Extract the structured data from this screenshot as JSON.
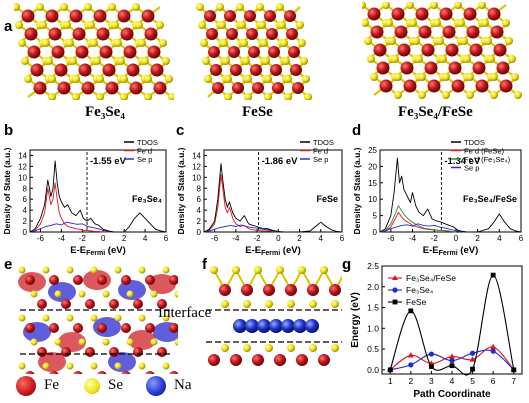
{
  "figure": {
    "panel_labels": [
      "a",
      "b",
      "c",
      "d",
      "e",
      "f",
      "g"
    ],
    "crystal_titles": {
      "fe3se4": "Fe₃Se₄",
      "fese": "FeSe",
      "composite": "Fe₃Se₄/FeSe"
    },
    "interface_label": "Interface",
    "atom_legend": [
      {
        "name": "Fe",
        "color": "#c0141c"
      },
      {
        "name": "Se",
        "color": "#f2e312"
      },
      {
        "name": "Na",
        "color": "#2033c8"
      }
    ],
    "dos_ylabel": "Density of State (a.u.)",
    "dos_xlabel_main": "E-E",
    "dos_xlabel_sub": "Fermi",
    "dos_xlabel_unit": " (eV)",
    "series_colors": {
      "tdos": "#000000",
      "fe_d": "#e0141c",
      "se_p": "#2a2ad8",
      "fe_d2": "#2e8b2e"
    }
  },
  "chart_data": [
    {
      "type": "line",
      "panel": "b",
      "ylabel": "Density of State (a.u.)",
      "xlabel": "E-EFermi (eV)",
      "xlim": [
        -7,
        6
      ],
      "ylim": [
        0,
        15
      ],
      "xticks": [
        -6,
        -4,
        -2,
        0,
        2,
        4,
        6
      ],
      "yticks": [
        0,
        2,
        4,
        6,
        8,
        10,
        12,
        14
      ],
      "fermi_annotation": "-1.55 eV",
      "fermi_x": -1.55,
      "material_label": "Fe₃Se₄",
      "legend": [
        "TDOS",
        "Fe d",
        "Se p"
      ],
      "series": [
        {
          "name": "TDOS",
          "x": [
            -7,
            -6.5,
            -6,
            -5.6,
            -5.3,
            -5.0,
            -4.8,
            -4.6,
            -4.4,
            -4.2,
            -4.0,
            -3.7,
            -3.4,
            -3.0,
            -2.6,
            -2.2,
            -1.9,
            -1.55,
            -1.2,
            -0.8,
            -0.4,
            0,
            0.5,
            1.0,
            1.5,
            2.0,
            2.5,
            3.0,
            3.5,
            4.0,
            4.5,
            5.0,
            5.5,
            6.0
          ],
          "y": [
            0,
            0.6,
            2.5,
            5.0,
            9.5,
            6.5,
            8.0,
            13.0,
            9.0,
            6.5,
            5.5,
            4.5,
            5.0,
            3.5,
            3.0,
            4.0,
            2.5,
            2.0,
            2.5,
            1.5,
            1.2,
            0.5,
            0.2,
            0,
            0,
            0,
            1.0,
            2.5,
            3.5,
            2.5,
            1.5,
            0.5,
            0.2,
            0
          ]
        },
        {
          "name": "Fe d",
          "x": [
            -7,
            -6.5,
            -6,
            -5.6,
            -5.3,
            -5.0,
            -4.8,
            -4.6,
            -4.4,
            -4.2,
            -4.0,
            -3.7,
            -3.4,
            -3.0,
            -2.6,
            -2.2,
            -1.9,
            -1.55,
            -1.2,
            -0.8,
            -0.4,
            0,
            0.5,
            1.0
          ],
          "y": [
            0,
            0.3,
            1.5,
            3.5,
            8.0,
            5.0,
            6.0,
            9.0,
            6.0,
            3.5,
            2.5,
            1.5,
            1.0,
            0.8,
            0.6,
            0.5,
            0.3,
            0.3,
            0.2,
            0.1,
            0.1,
            0,
            0,
            0
          ]
        },
        {
          "name": "Se p",
          "x": [
            -7,
            -6.5,
            -6,
            -5.5,
            -5.0,
            -4.5,
            -4.0,
            -3.5,
            -3.0,
            -2.5,
            -2.0,
            -1.5,
            -1.0,
            -0.5,
            0,
            0.5,
            1.0
          ],
          "y": [
            0,
            0.2,
            0.6,
            1.0,
            1.2,
            1.5,
            1.3,
            1.8,
            1.6,
            1.4,
            1.5,
            1.0,
            0.8,
            0.6,
            0.3,
            0.1,
            0
          ]
        }
      ]
    },
    {
      "type": "line",
      "panel": "c",
      "ylabel": "Density of State (a.u.)",
      "xlabel": "E-EFermi (eV)",
      "xlim": [
        -7,
        6
      ],
      "ylim": [
        0,
        15
      ],
      "xticks": [
        -6,
        -4,
        -2,
        0,
        2,
        4,
        6
      ],
      "yticks": [
        0,
        2,
        4,
        6,
        8,
        10,
        12,
        14
      ],
      "fermi_annotation": "-1.86 eV",
      "fermi_x": -1.86,
      "material_label": "FeSe",
      "legend": [
        "TDOS",
        "Fe d",
        "Se p"
      ],
      "series": [
        {
          "name": "TDOS",
          "x": [
            -7,
            -6.5,
            -6,
            -5.7,
            -5.4,
            -5.2,
            -5.0,
            -4.8,
            -4.6,
            -4.3,
            -4.0,
            -3.6,
            -3.2,
            -2.8,
            -2.4,
            -2.0,
            -1.86,
            -1.5,
            -1.0,
            -0.5,
            0,
            0.5,
            1.0,
            2.0,
            3.0,
            3.5,
            4.0,
            4.5,
            5.0,
            5.5,
            6.0
          ],
          "y": [
            0,
            0.5,
            2.0,
            6.0,
            12.5,
            9.0,
            6.0,
            4.5,
            5.5,
            3.5,
            2.5,
            2.0,
            3.0,
            1.5,
            1.2,
            1.0,
            0.8,
            0.7,
            0.6,
            0.3,
            0.1,
            0,
            0,
            0,
            0.2,
            1.0,
            1.8,
            1.0,
            0.4,
            0.1,
            0
          ]
        },
        {
          "name": "Fe d",
          "x": [
            -7,
            -6.5,
            -6,
            -5.7,
            -5.4,
            -5.2,
            -5.0,
            -4.8,
            -4.6,
            -4.3,
            -4.0,
            -3.6,
            -3.2,
            -2.8,
            -2.4,
            -2.0,
            -1.5,
            -1.0,
            -0.5,
            0
          ],
          "y": [
            0,
            0.3,
            1.5,
            4.5,
            10.5,
            7.5,
            4.5,
            3.5,
            4.5,
            2.5,
            1.5,
            1.0,
            1.2,
            0.6,
            0.4,
            0.3,
            0.2,
            0.2,
            0.1,
            0
          ]
        },
        {
          "name": "Se p",
          "x": [
            -7,
            -6.5,
            -6,
            -5.5,
            -5.0,
            -4.5,
            -4.0,
            -3.5,
            -3.0,
            -2.5,
            -2.0,
            -1.5,
            -1.0,
            -0.5,
            0
          ],
          "y": [
            0,
            0.2,
            0.5,
            0.8,
            1.0,
            1.2,
            1.0,
            1.3,
            1.0,
            0.8,
            0.7,
            0.5,
            0.4,
            0.2,
            0
          ]
        }
      ]
    },
    {
      "type": "line",
      "panel": "d",
      "ylabel": "Density of State (a.u.)",
      "xlabel": "E-EFermi (eV)",
      "xlim": [
        -7,
        6
      ],
      "ylim": [
        0,
        25
      ],
      "xticks": [
        -6,
        -4,
        -2,
        0,
        2,
        4,
        6
      ],
      "yticks": [
        0,
        5,
        10,
        15,
        20,
        25
      ],
      "fermi_annotation": "-1.34 eV",
      "fermi_x": -1.34,
      "material_label": "Fe₃Se₄/FeSe",
      "legend": [
        "TDOS",
        "Fe d (FeSe)",
        "Fe d (Fe₃Se₄)",
        "Se p"
      ],
      "series": [
        {
          "name": "TDOS",
          "x": [
            -7,
            -6.5,
            -6,
            -5.7,
            -5.4,
            -5.2,
            -5.0,
            -4.8,
            -4.5,
            -4.2,
            -4.0,
            -3.7,
            -3.4,
            -3.0,
            -2.6,
            -2.2,
            -1.9,
            -1.34,
            -1.0,
            -0.6,
            -0.2,
            0.2,
            0.6,
            1.0,
            2.0,
            3.0,
            3.5,
            4.0,
            4.5,
            5.0,
            5.5,
            6.0
          ],
          "y": [
            0,
            1.0,
            5.0,
            12.0,
            22.5,
            15.0,
            17.0,
            13.0,
            11.0,
            9.0,
            12.0,
            8.0,
            6.0,
            5.0,
            7.0,
            4.0,
            3.5,
            3.0,
            2.5,
            2.0,
            1.5,
            0.5,
            0.2,
            0,
            0,
            1.0,
            3.0,
            5.5,
            3.0,
            1.0,
            0.3,
            0
          ]
        },
        {
          "name": "Fe d (FeSe)",
          "x": [
            -7,
            -6.5,
            -6,
            -5.6,
            -5.3,
            -5.0,
            -4.7,
            -4.4,
            -4.0,
            -3.5,
            -3.0,
            -2.5,
            -2.0,
            -1.5,
            -1.0,
            -0.5,
            0
          ],
          "y": [
            0,
            0.3,
            1.5,
            4.0,
            6.0,
            4.5,
            3.5,
            3.0,
            2.0,
            1.5,
            1.0,
            0.8,
            0.6,
            0.5,
            0.4,
            0.2,
            0
          ]
        },
        {
          "name": "Fe d (Fe₃Se₄)",
          "x": [
            -7,
            -6.5,
            -6,
            -5.6,
            -5.3,
            -5.0,
            -4.7,
            -4.4,
            -4.0,
            -3.5,
            -3.0,
            -2.5,
            -2.0,
            -1.5,
            -1.0,
            -0.5,
            0
          ],
          "y": [
            0,
            0.5,
            2.5,
            5.5,
            8.0,
            6.5,
            5.0,
            4.0,
            3.0,
            2.0,
            1.2,
            0.9,
            0.7,
            0.5,
            0.4,
            0.2,
            0
          ]
        },
        {
          "name": "Se p",
          "x": [
            -7,
            -6.5,
            -6,
            -5.5,
            -5.0,
            -4.5,
            -4.0,
            -3.5,
            -3.0,
            -2.5,
            -2.0,
            -1.5,
            -1.0,
            -0.5,
            0,
            0.5,
            1.0
          ],
          "y": [
            0,
            0.3,
            1.0,
            1.5,
            2.0,
            2.2,
            1.8,
            2.5,
            2.0,
            1.8,
            2.0,
            1.5,
            1.2,
            0.8,
            0.4,
            0.1,
            0
          ]
        }
      ]
    },
    {
      "type": "line",
      "panel": "g",
      "xlabel": "Path Coordinate",
      "ylabel": "Energy (eV)",
      "xlim": [
        0.6,
        7.4
      ],
      "ylim": [
        -0.1,
        2.5
      ],
      "xticks": [
        1,
        2,
        3,
        4,
        5,
        6,
        7
      ],
      "yticks": [
        0.0,
        0.5,
        1.0,
        1.5,
        2.0,
        2.5
      ],
      "yticklabels": [
        "0.0",
        "0.5",
        "1.0",
        "1.5",
        "2.0",
        "2.5"
      ],
      "legend": [
        "Fe₃Se₄/FeSe",
        "Fe₃Se₄",
        "FeSe"
      ],
      "series": [
        {
          "name": "Fe₃Se₄/FeSe",
          "marker": "triangle",
          "x": [
            1,
            2,
            3,
            4,
            5,
            6,
            7
          ],
          "y": [
            0.0,
            0.35,
            0.15,
            0.32,
            0.25,
            0.55,
            0.0
          ]
        },
        {
          "name": "Fe₃Se₄",
          "marker": "circle",
          "x": [
            1,
            2,
            3,
            4,
            5,
            6,
            7
          ],
          "y": [
            0.0,
            0.12,
            0.38,
            0.22,
            0.4,
            0.45,
            0.0
          ]
        },
        {
          "name": "FeSe",
          "marker": "square",
          "x": [
            1,
            2,
            3,
            4,
            5,
            6,
            7
          ],
          "y": [
            0.0,
            1.42,
            0.08,
            0.1,
            0.02,
            2.28,
            0.0
          ]
        }
      ]
    }
  ]
}
